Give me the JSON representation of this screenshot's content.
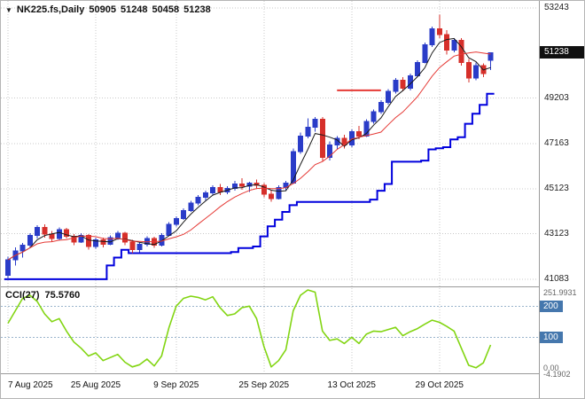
{
  "header": {
    "marker": "▼",
    "symbol": "NK225.fs,Daily",
    "ohlc": {
      "open": "50905",
      "high": "51248",
      "low": "50458",
      "close": "51238"
    }
  },
  "colors": {
    "bull": "#2a3cc8",
    "bear": "#d62f2a",
    "trail_line": "#0000dd",
    "cci_line": "#82d512",
    "badge_blue": "#4577ad",
    "badge_black": "#101010",
    "grid": "#c9c9c9",
    "level": "#9ab4cc"
  },
  "chart_data": {
    "type": "candlestick",
    "symbol": "NK225.fs,Daily",
    "timeframe": "Daily",
    "current_bar_ohlc": {
      "open": 50905,
      "high": 51248,
      "low": 50458,
      "close": 51238
    },
    "price_axis_labels": [
      {
        "label": "53243",
        "value": 53243
      },
      {
        "label": "49203",
        "value": 49203
      },
      {
        "label": "47163",
        "value": 47163
      },
      {
        "label": "45123",
        "value": 45123
      },
      {
        "label": "43123",
        "value": 43123
      },
      {
        "label": "41083",
        "value": 41083
      }
    ],
    "current_price_badge": {
      "label": "51238",
      "value": 51238
    },
    "x_axis_labels": [
      {
        "label": "7 Aug 2025",
        "index": 0
      },
      {
        "label": "25 Aug 2025",
        "index": 12
      },
      {
        "label": "9 Sep 2025",
        "index": 23
      },
      {
        "label": "25 Sep 2025",
        "index": 35
      },
      {
        "label": "13 Oct 2025",
        "index": 47
      },
      {
        "label": "29 Oct 2025",
        "index": 59
      }
    ],
    "candles": [
      [
        41250,
        42100,
        41080,
        41950
      ],
      [
        41950,
        42500,
        41700,
        42350
      ],
      [
        42350,
        42700,
        42050,
        42600
      ],
      [
        42600,
        43150,
        42500,
        43050
      ],
      [
        43050,
        43500,
        42900,
        43400
      ],
      [
        43400,
        43550,
        42950,
        43100
      ],
      [
        43100,
        43250,
        42750,
        42900
      ],
      [
        42900,
        43400,
        42850,
        43300
      ],
      [
        43300,
        43380,
        42900,
        43000
      ],
      [
        43000,
        43100,
        42600,
        42750
      ],
      [
        42750,
        43150,
        42700,
        43050
      ],
      [
        43050,
        43100,
        42400,
        42550
      ],
      [
        42550,
        42950,
        42450,
        42850
      ],
      [
        42850,
        42950,
        42500,
        42650
      ],
      [
        42650,
        43050,
        42600,
        42950
      ],
      [
        42950,
        43250,
        42850,
        43150
      ],
      [
        43150,
        43200,
        42600,
        42750
      ],
      [
        42750,
        42850,
        42250,
        42400
      ],
      [
        42400,
        42750,
        42300,
        42650
      ],
      [
        42650,
        43000,
        42550,
        42900
      ],
      [
        42900,
        42980,
        42480,
        42600
      ],
      [
        42600,
        43150,
        42550,
        43050
      ],
      [
        43050,
        43650,
        43000,
        43550
      ],
      [
        43550,
        43900,
        43450,
        43800
      ],
      [
        43800,
        44250,
        43750,
        44150
      ],
      [
        44150,
        44600,
        44100,
        44500
      ],
      [
        44500,
        44850,
        44400,
        44750
      ],
      [
        44750,
        45050,
        44600,
        44950
      ],
      [
        44950,
        45300,
        44850,
        45200
      ],
      [
        45200,
        45350,
        44850,
        45000
      ],
      [
        45000,
        45250,
        44900,
        45150
      ],
      [
        45150,
        45500,
        45050,
        45350
      ],
      [
        45350,
        45600,
        45100,
        45250
      ],
      [
        45250,
        45450,
        45000,
        45400
      ],
      [
        45400,
        45550,
        45150,
        45300
      ],
      [
        45300,
        45400,
        44750,
        44900
      ],
      [
        44900,
        45100,
        44550,
        44700
      ],
      [
        44700,
        45300,
        44650,
        45200
      ],
      [
        45200,
        45500,
        45050,
        45400
      ],
      [
        45400,
        46950,
        45350,
        46800
      ],
      [
        46800,
        47650,
        46700,
        47500
      ],
      [
        47500,
        48300,
        47400,
        47900
      ],
      [
        47900,
        48350,
        47700,
        48250
      ],
      [
        48250,
        48350,
        46350,
        46550
      ],
      [
        46550,
        47250,
        46400,
        47100
      ],
      [
        47100,
        47500,
        46900,
        47400
      ],
      [
        47400,
        47550,
        46950,
        47100
      ],
      [
        47100,
        47800,
        47000,
        47700
      ],
      [
        47700,
        47950,
        47350,
        47500
      ],
      [
        47500,
        48250,
        47450,
        48150
      ],
      [
        48150,
        48700,
        48050,
        48600
      ],
      [
        48600,
        49100,
        48500,
        49000
      ],
      [
        49000,
        49600,
        48900,
        49500
      ],
      [
        49500,
        50100,
        49400,
        50000
      ],
      [
        50000,
        50150,
        49500,
        49650
      ],
      [
        49650,
        50300,
        49550,
        50200
      ],
      [
        50200,
        50900,
        50150,
        50800
      ],
      [
        50800,
        51700,
        50750,
        51600
      ],
      [
        51600,
        52400,
        51500,
        52300
      ],
      [
        52300,
        52950,
        51900,
        52050
      ],
      [
        52050,
        52250,
        51150,
        51350
      ],
      [
        51350,
        51900,
        51250,
        51800
      ],
      [
        51800,
        51900,
        50650,
        50800
      ],
      [
        50800,
        50950,
        49900,
        50100
      ],
      [
        50100,
        50800,
        50000,
        50650
      ],
      [
        50650,
        50750,
        50150,
        50300
      ],
      [
        50905,
        51248,
        50458,
        51238
      ]
    ],
    "overlays": {
      "ma_fast": {
        "period": 4,
        "color": "#1a1a1a"
      },
      "ma_slow": {
        "period": 9,
        "color": "#e53935"
      },
      "trail_line": {
        "period": 14,
        "color": "#0000dd",
        "description": "stepped lowest-low support line"
      },
      "segment": {
        "price": 49550,
        "from_index": 45,
        "to_index": 51,
        "color": "#e53935"
      }
    },
    "indicator": {
      "name": "CCI(27)",
      "value_label": "75.5760",
      "range": [
        -4.1902,
        251.9931
      ],
      "series": [
        145,
        185,
        225,
        235,
        215,
        175,
        150,
        160,
        120,
        85,
        65,
        40,
        50,
        25,
        35,
        45,
        20,
        5,
        12,
        30,
        8,
        40,
        130,
        200,
        225,
        232,
        228,
        220,
        230,
        195,
        170,
        175,
        195,
        200,
        160,
        70,
        5,
        25,
        60,
        185,
        235,
        251.9931,
        245,
        120,
        90,
        95,
        80,
        100,
        80,
        110,
        120,
        118,
        125,
        132,
        105,
        118,
        128,
        142,
        155,
        148,
        135,
        120,
        65,
        10,
        2,
        18,
        75.576
      ],
      "axis_text_labels": [
        {
          "label": "251.9931",
          "value": 251.9931
        },
        {
          "label": "0.00",
          "value": 0
        },
        {
          "label": "-4.1902",
          "value": -4.1902
        }
      ],
      "level_badges": [
        {
          "label": "200",
          "value": 200
        },
        {
          "label": "100",
          "value": 100
        }
      ]
    }
  }
}
